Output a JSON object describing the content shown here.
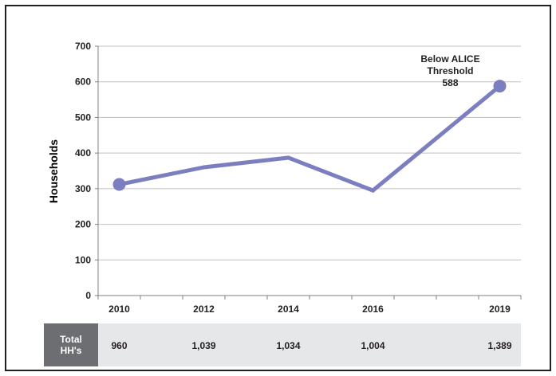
{
  "chart_data": {
    "type": "line",
    "title": "",
    "xlabel": "",
    "ylabel": "Households",
    "ylim": [
      0,
      700
    ],
    "y_ticks": [
      "0",
      "100",
      "200",
      "300",
      "400",
      "500",
      "600",
      "700"
    ],
    "categories": [
      "2010",
      "2012",
      "2014",
      "2016",
      "2019"
    ],
    "x_values": [
      2010,
      2012,
      2014,
      2016,
      2019
    ],
    "xlim": [
      2009.5,
      2019.5
    ],
    "series": [
      {
        "name": "",
        "values": [
          312,
          360,
          387,
          295,
          588
        ]
      }
    ],
    "annotation": {
      "lines": [
        "Below ALICE",
        "Threshold",
        "588"
      ]
    },
    "grid": true,
    "line_color": "#7b7fbf"
  },
  "totals_table": {
    "header_lines": [
      "Total",
      "HH's"
    ],
    "values": [
      "960",
      "1,039",
      "1,034",
      "1,004",
      "1,389"
    ],
    "header_bg": "#6d6e71",
    "row_bg": "#e6e7e8"
  }
}
